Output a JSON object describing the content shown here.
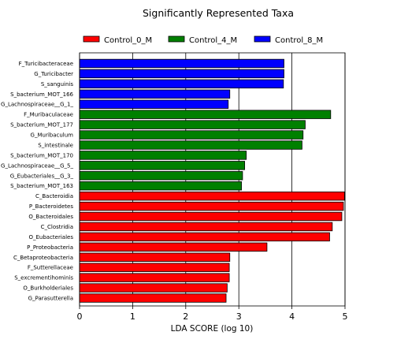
{
  "chart_data": {
    "type": "bar",
    "orientation": "horizontal",
    "title": "Significantly Represented Taxa",
    "xlabel": "LDA SCORE (log 10)",
    "ylabel": "",
    "xlim": [
      0,
      5
    ],
    "xticks": [
      0,
      1,
      2,
      3,
      4,
      5
    ],
    "grid": "vertical gridlines at integer ticks",
    "legend_position": "top",
    "colors": {
      "Control_0_M": "#ff0000",
      "Control_4_M": "#008000",
      "Control_8_M": "#0000ff"
    },
    "legend": [
      "Control_0_M",
      "Control_4_M",
      "Control_8_M"
    ],
    "bars": [
      {
        "label": "F_Turicibacteraceae",
        "value": 3.85,
        "group": "Control_8_M"
      },
      {
        "label": "G_Turicibacter",
        "value": 3.85,
        "group": "Control_8_M"
      },
      {
        "label": "S_sanguinis",
        "value": 3.84,
        "group": "Control_8_M"
      },
      {
        "label": "S_bacterium_MOT_166",
        "value": 2.83,
        "group": "Control_8_M"
      },
      {
        "label": "G_Lachnospiraceae__G_1_",
        "value": 2.8,
        "group": "Control_8_M"
      },
      {
        "label": "F_Muribaculaceae",
        "value": 4.73,
        "group": "Control_4_M"
      },
      {
        "label": "S_bacterium_MOT_177",
        "value": 4.25,
        "group": "Control_4_M"
      },
      {
        "label": "G_Muribaculum",
        "value": 4.21,
        "group": "Control_4_M"
      },
      {
        "label": "S_intestinale",
        "value": 4.19,
        "group": "Control_4_M"
      },
      {
        "label": "S_bacterium_MOT_170",
        "value": 3.14,
        "group": "Control_4_M"
      },
      {
        "label": "G_Lachnospiraceae__G_5_",
        "value": 3.11,
        "group": "Control_4_M"
      },
      {
        "label": "G_Eubacteriales__G_3_",
        "value": 3.07,
        "group": "Control_4_M"
      },
      {
        "label": "S_bacterium_MOT_163",
        "value": 3.05,
        "group": "Control_4_M"
      },
      {
        "label": "C_Bacteroidia",
        "value": 4.99,
        "group": "Control_0_M"
      },
      {
        "label": "P_Bacteroidetes",
        "value": 4.97,
        "group": "Control_0_M"
      },
      {
        "label": "O_Bacteroidales",
        "value": 4.94,
        "group": "Control_0_M"
      },
      {
        "label": "C_Clostridia",
        "value": 4.76,
        "group": "Control_0_M"
      },
      {
        "label": "O_Eubacteriales",
        "value": 4.71,
        "group": "Control_0_M"
      },
      {
        "label": "P_Proteobacteria",
        "value": 3.53,
        "group": "Control_0_M"
      },
      {
        "label": "C_Betaproteobacteria",
        "value": 2.83,
        "group": "Control_0_M"
      },
      {
        "label": "F_Sutterellaceae",
        "value": 2.82,
        "group": "Control_0_M"
      },
      {
        "label": "S_excrementihominis",
        "value": 2.82,
        "group": "Control_0_M"
      },
      {
        "label": "O_Burkholderiales",
        "value": 2.78,
        "group": "Control_0_M"
      },
      {
        "label": "G_Parasutterella",
        "value": 2.76,
        "group": "Control_0_M"
      }
    ]
  }
}
